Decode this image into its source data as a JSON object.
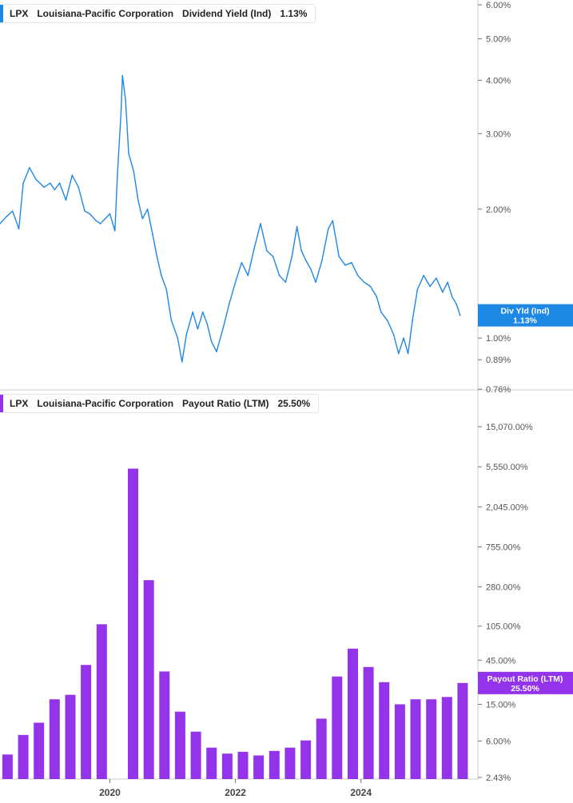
{
  "colors": {
    "dividend": "#1e88e5",
    "payout": "#9333ea",
    "axis": "#777777",
    "grid": "#cccccc"
  },
  "panels": {
    "dividend": {
      "ticker": "LPX",
      "company": "Louisiana-Pacific Corporation",
      "metric": "Dividend Yield (Ind)",
      "value": "1.13%"
    },
    "payout": {
      "ticker": "LPX",
      "company": "Louisiana-Pacific Corporation",
      "metric": "Payout Ratio (LTM)",
      "value": "25.50%"
    }
  },
  "chart_data": [
    {
      "type": "line",
      "title": "",
      "series": [
        {
          "name": "Dividend Yield (Ind)"
        }
      ],
      "y_scale": "log",
      "ylim": [
        0.76,
        6.0
      ],
      "yticks": [
        "6.00%",
        "5.00%",
        "4.00%",
        "3.00%",
        "2.00%",
        "1.00%",
        "0.89%",
        "0.76%"
      ],
      "ytick_values": [
        6.0,
        5.0,
        4.0,
        3.0,
        2.0,
        1.0,
        0.89,
        0.76
      ],
      "value_label_title": "Div Yld (Ind)",
      "value_label": "1.13%",
      "last_value": 1.13,
      "xlim": [
        2018.25,
        2025.85
      ],
      "points": [
        [
          2018.25,
          1.85
        ],
        [
          2018.35,
          1.92
        ],
        [
          2018.45,
          1.98
        ],
        [
          2018.55,
          1.8
        ],
        [
          2018.62,
          2.3
        ],
        [
          2018.72,
          2.5
        ],
        [
          2018.82,
          2.35
        ],
        [
          2018.95,
          2.25
        ],
        [
          2019.05,
          2.3
        ],
        [
          2019.12,
          2.22
        ],
        [
          2019.2,
          2.3
        ],
        [
          2019.3,
          2.1
        ],
        [
          2019.4,
          2.4
        ],
        [
          2019.5,
          2.25
        ],
        [
          2019.6,
          1.98
        ],
        [
          2019.68,
          1.95
        ],
        [
          2019.78,
          1.88
        ],
        [
          2019.85,
          1.85
        ],
        [
          2020.0,
          1.95
        ],
        [
          2020.08,
          1.78
        ],
        [
          2020.12,
          2.4
        ],
        [
          2020.18,
          3.4
        ],
        [
          2020.2,
          4.1
        ],
        [
          2020.25,
          3.6
        ],
        [
          2020.3,
          2.7
        ],
        [
          2020.38,
          2.45
        ],
        [
          2020.45,
          2.1
        ],
        [
          2020.52,
          1.9
        ],
        [
          2020.6,
          2.0
        ],
        [
          2020.68,
          1.75
        ],
        [
          2020.75,
          1.55
        ],
        [
          2020.82,
          1.4
        ],
        [
          2020.9,
          1.3
        ],
        [
          2020.98,
          1.1
        ],
        [
          2021.08,
          1.0
        ],
        [
          2021.15,
          0.88
        ],
        [
          2021.22,
          1.02
        ],
        [
          2021.32,
          1.15
        ],
        [
          2021.4,
          1.05
        ],
        [
          2021.48,
          1.15
        ],
        [
          2021.55,
          1.08
        ],
        [
          2021.62,
          0.98
        ],
        [
          2021.7,
          0.93
        ],
        [
          2021.8,
          1.05
        ],
        [
          2021.9,
          1.2
        ],
        [
          2022.0,
          1.35
        ],
        [
          2022.1,
          1.5
        ],
        [
          2022.2,
          1.4
        ],
        [
          2022.3,
          1.62
        ],
        [
          2022.4,
          1.85
        ],
        [
          2022.5,
          1.6
        ],
        [
          2022.6,
          1.55
        ],
        [
          2022.7,
          1.4
        ],
        [
          2022.8,
          1.35
        ],
        [
          2022.9,
          1.55
        ],
        [
          2022.98,
          1.82
        ],
        [
          2023.05,
          1.6
        ],
        [
          2023.12,
          1.52
        ],
        [
          2023.2,
          1.45
        ],
        [
          2023.28,
          1.35
        ],
        [
          2023.38,
          1.52
        ],
        [
          2023.48,
          1.8
        ],
        [
          2023.55,
          1.88
        ],
        [
          2023.65,
          1.55
        ],
        [
          2023.75,
          1.48
        ],
        [
          2023.85,
          1.5
        ],
        [
          2023.95,
          1.4
        ],
        [
          2024.05,
          1.35
        ],
        [
          2024.15,
          1.32
        ],
        [
          2024.25,
          1.25
        ],
        [
          2024.32,
          1.15
        ],
        [
          2024.42,
          1.1
        ],
        [
          2024.52,
          1.02
        ],
        [
          2024.6,
          0.92
        ],
        [
          2024.68,
          1.0
        ],
        [
          2024.75,
          0.92
        ],
        [
          2024.82,
          1.1
        ],
        [
          2024.9,
          1.3
        ],
        [
          2025.0,
          1.4
        ],
        [
          2025.1,
          1.32
        ],
        [
          2025.2,
          1.38
        ],
        [
          2025.3,
          1.28
        ],
        [
          2025.38,
          1.35
        ],
        [
          2025.45,
          1.25
        ],
        [
          2025.52,
          1.2
        ],
        [
          2025.58,
          1.13
        ]
      ]
    },
    {
      "type": "bar",
      "title": "",
      "series": [
        {
          "name": "Payout Ratio (LTM)"
        }
      ],
      "y_scale": "log",
      "ylim": [
        2.43,
        15070.0
      ],
      "yticks": [
        "15,070.00%",
        "5,550.00%",
        "2,045.00%",
        "755.00%",
        "280.00%",
        "105.00%",
        "45.00%",
        "15.00%",
        "6.00%",
        "2.43%"
      ],
      "ytick_values": [
        15070,
        5550,
        2045,
        755,
        280,
        105,
        45,
        15,
        6,
        2.43
      ],
      "value_label_title": "Payout Ratio (LTM)",
      "value_label": "25.50%",
      "xlim": [
        2018.25,
        2025.85
      ],
      "xticks": [
        "2020",
        "2022",
        "2024"
      ],
      "xtick_values": [
        2020,
        2022,
        2024
      ],
      "bars": [
        [
          2018.37,
          4.3
        ],
        [
          2018.62,
          7.0
        ],
        [
          2018.87,
          9.5
        ],
        [
          2019.12,
          17.0
        ],
        [
          2019.37,
          19.0
        ],
        [
          2019.62,
          40.0
        ],
        [
          2019.87,
          110.0
        ],
        [
          2020.12,
          0
        ],
        [
          2020.37,
          5300.0
        ],
        [
          2020.62,
          330.0
        ],
        [
          2020.87,
          34.0
        ],
        [
          2021.12,
          12.5
        ],
        [
          2021.37,
          7.6
        ],
        [
          2021.62,
          5.1
        ],
        [
          2021.87,
          4.4
        ],
        [
          2022.12,
          4.6
        ],
        [
          2022.37,
          4.2
        ],
        [
          2022.62,
          4.7
        ],
        [
          2022.87,
          5.1
        ],
        [
          2023.12,
          6.1
        ],
        [
          2023.37,
          10.5
        ],
        [
          2023.62,
          30.0
        ],
        [
          2023.87,
          60.0
        ],
        [
          2024.12,
          38.0
        ],
        [
          2024.37,
          26.0
        ],
        [
          2024.62,
          15.0
        ],
        [
          2024.87,
          17.0
        ],
        [
          2025.12,
          17.0
        ],
        [
          2025.37,
          18.0
        ],
        [
          2025.62,
          25.5
        ]
      ]
    }
  ]
}
